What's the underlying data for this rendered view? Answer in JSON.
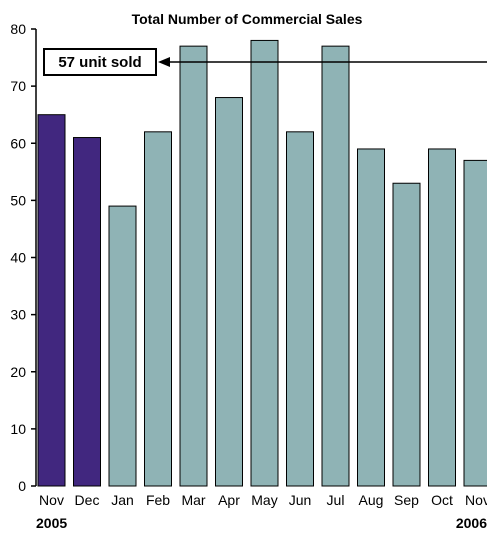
{
  "chart_data": {
    "type": "bar",
    "title": "Total Number of Commercial Sales",
    "xlabel": "",
    "ylabel": "",
    "categories": [
      "Nov",
      "Dec",
      "Jan",
      "Feb",
      "Mar",
      "Apr",
      "May",
      "Jun",
      "Jul",
      "Aug",
      "Sep",
      "Oct",
      "Nov"
    ],
    "values": [
      65,
      61,
      49,
      62,
      77,
      68,
      78,
      62,
      77,
      59,
      53,
      59,
      57
    ],
    "bar_colors": [
      "#41277f",
      "#41277f",
      "#8fb3b5",
      "#8fb3b5",
      "#8fb3b5",
      "#8fb3b5",
      "#8fb3b5",
      "#8fb3b5",
      "#8fb3b5",
      "#8fb3b5",
      "#8fb3b5",
      "#8fb3b5",
      "#8fb3b5"
    ],
    "ylim": [
      0,
      80
    ],
    "yticks": [
      0,
      10,
      20,
      30,
      40,
      50,
      60,
      70,
      80
    ],
    "grid": false,
    "year_labels": {
      "start": "2005",
      "end": "2006"
    },
    "annotation": {
      "text": "57 unit sold",
      "target_index": 12
    }
  }
}
